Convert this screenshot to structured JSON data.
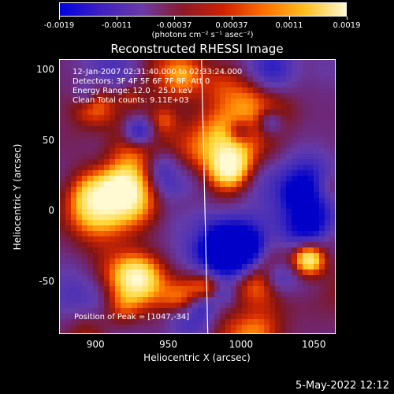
{
  "colorbar": {
    "tick_labels": [
      "-0.0019",
      "-0.0011",
      "-0.00037",
      "0.00037",
      "0.0011",
      "0.0019"
    ],
    "units": "(photons cm⁻² s⁻¹ asec⁻²)",
    "colors": [
      "#0000e0",
      "#4020c0",
      "#6a3aa8",
      "#8a1a2a",
      "#d02000",
      "#ff7000",
      "#ffc020",
      "#fff8d0"
    ]
  },
  "title": "Reconstructed RHESSI Image",
  "annotations": {
    "time_range": "12-Jan-2007 02:31:40.000 to 02:33:24.000",
    "detectors": "Detectors: 3F 4F 5F 6F 7F 8F, Att 0",
    "energy_range": "Energy Range: 12.0 - 25.0 keV",
    "method_counts": "Clean     Total counts: 9.11E+03",
    "peak_position": "Position of Peak = [1047,-34]"
  },
  "chart_data": {
    "type": "heatmap",
    "title": "Reconstructed RHESSI Image",
    "xlabel": "Heliocentric X (arcsec)",
    "ylabel": "Heliocentric Y (arcsec)",
    "xlim": [
      875,
      1065
    ],
    "ylim": [
      -87,
      107
    ],
    "xticks": [
      900,
      950,
      1000,
      1050
    ],
    "yticks": [
      -50,
      0,
      50,
      100
    ],
    "xtick_labels": [
      "900",
      "950",
      "1000",
      "1050"
    ],
    "ytick_labels": [
      "-50",
      "0",
      "50",
      "100"
    ],
    "colorbar_range": [
      -0.0019,
      0.0019
    ],
    "peak": [
      1047,
      -34
    ],
    "limb_x_approx": 975
  },
  "timestamp": "5-May-2022 12:12"
}
